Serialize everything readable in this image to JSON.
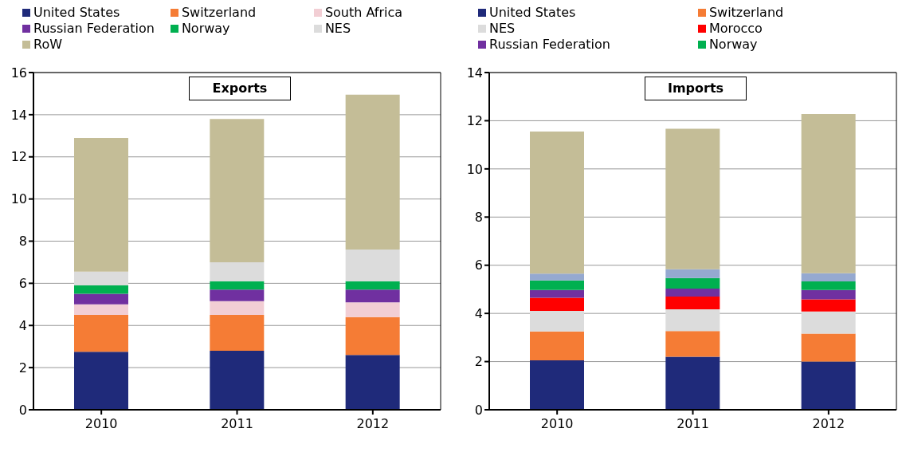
{
  "chart_data": [
    {
      "type": "bar",
      "title": "Exports",
      "stacked": true,
      "grid": "y",
      "legend": "top",
      "categories": [
        "2010",
        "2011",
        "2012"
      ],
      "ylim": [
        0,
        16
      ],
      "yticks": [
        0,
        2,
        4,
        6,
        8,
        10,
        12,
        14,
        16
      ],
      "series": [
        {
          "name": "United States",
          "color": "#1f2a7a",
          "values": [
            2.75,
            2.8,
            2.6
          ]
        },
        {
          "name": "Switzerland",
          "color": "#f57c35",
          "values": [
            1.75,
            1.7,
            1.8
          ]
        },
        {
          "name": "South Africa",
          "color": "#f2ced4",
          "values": [
            0.5,
            0.65,
            0.7
          ]
        },
        {
          "name": "Russian Federation",
          "color": "#7030a0",
          "values": [
            0.5,
            0.55,
            0.6
          ]
        },
        {
          "name": "Norway",
          "color": "#00b050",
          "values": [
            0.4,
            0.4,
            0.4
          ]
        },
        {
          "name": "NES",
          "color": "#dcdcdc",
          "values": [
            0.65,
            0.9,
            1.5
          ]
        },
        {
          "name": "RoW",
          "color": "#c4bd97",
          "values": [
            6.35,
            6.8,
            7.35
          ]
        }
      ]
    },
    {
      "type": "bar",
      "title": "Imports",
      "stacked": true,
      "grid": "y",
      "legend": "top",
      "categories": [
        "2010",
        "2011",
        "2012"
      ],
      "ylim": [
        0,
        14
      ],
      "yticks": [
        0,
        2,
        4,
        6,
        8,
        10,
        12,
        14
      ],
      "series": [
        {
          "name": "United States",
          "color": "#1f2a7a",
          "values": [
            2.05,
            2.2,
            2.0
          ]
        },
        {
          "name": "Switzerland",
          "color": "#f57c35",
          "values": [
            1.2,
            1.07,
            1.16
          ]
        },
        {
          "name": "NES",
          "color": "#dcdcdc",
          "values": [
            0.85,
            0.9,
            0.92
          ]
        },
        {
          "name": "Morocco",
          "color": "#ff0000",
          "values": [
            0.55,
            0.53,
            0.5
          ]
        },
        {
          "name": "Russian Federation",
          "color": "#7030a0",
          "values": [
            0.32,
            0.33,
            0.39
          ]
        },
        {
          "name": "Norway",
          "color": "#00b050",
          "values": [
            0.4,
            0.44,
            0.36
          ]
        },
        {
          "color": "#95a9d0",
          "values": [
            0.28,
            0.36,
            0.34
          ]
        },
        {
          "color": "#c4bd97",
          "values": [
            5.9,
            5.84,
            6.61
          ]
        }
      ]
    }
  ]
}
